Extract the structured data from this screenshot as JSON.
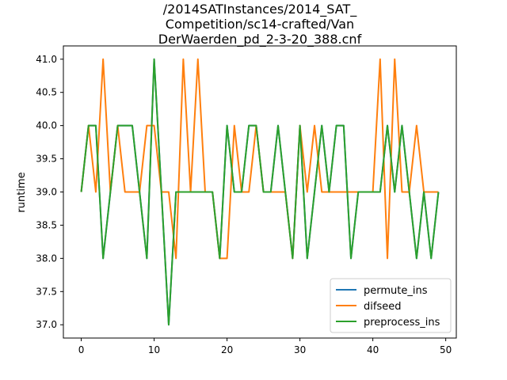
{
  "chart_data": {
    "type": "line",
    "title_lines": [
      "/2014SATInstances/2014_SAT_",
      "Competition/sc14-crafted/Van",
      "DerWaerden_pd_2-3-20_388.cnf"
    ],
    "xlabel": "",
    "ylabel": "runtime",
    "xlim": [
      -2.45,
      51.45
    ],
    "ylim": [
      36.8,
      41.2
    ],
    "xticks": [
      0,
      10,
      20,
      30,
      40,
      50
    ],
    "yticks": [
      37.0,
      37.5,
      38.0,
      38.5,
      39.0,
      39.5,
      40.0,
      40.5,
      41.0
    ],
    "ytick_labels": [
      "37.0",
      "37.5",
      "38.0",
      "38.5",
      "39.0",
      "39.5",
      "40.0",
      "40.5",
      "41.0"
    ],
    "legend_position": "lower right",
    "grid": false,
    "series": [
      {
        "name": "permute_ins",
        "color": "#1f77b4",
        "x": [
          0,
          1,
          2,
          3,
          4,
          5,
          6,
          7,
          8,
          9,
          10,
          11,
          12,
          13,
          14,
          15,
          16,
          17,
          18,
          19,
          20,
          21,
          22,
          23,
          24,
          25,
          26,
          27,
          28,
          29,
          30,
          31,
          32,
          33,
          34,
          35,
          36,
          37,
          38,
          39,
          40,
          41,
          42,
          43,
          44,
          45,
          46,
          47,
          48,
          49
        ],
        "values": [
          39,
          40,
          40,
          38,
          39,
          40,
          40,
          40,
          39,
          38,
          41,
          39,
          37,
          39,
          39,
          39,
          39,
          39,
          39,
          38,
          40,
          39,
          39,
          40,
          40,
          39,
          39,
          40,
          39,
          38,
          40,
          38,
          39,
          40,
          39,
          40,
          40,
          38,
          39,
          39,
          39,
          39,
          40,
          39,
          40,
          39,
          38,
          39,
          38,
          39
        ]
      },
      {
        "name": "difseed",
        "color": "#ff7f0e",
        "x": [
          0,
          1,
          2,
          3,
          4,
          5,
          6,
          7,
          8,
          9,
          10,
          11,
          12,
          13,
          14,
          15,
          16,
          17,
          18,
          19,
          20,
          21,
          22,
          23,
          24,
          25,
          26,
          27,
          28,
          29,
          30,
          31,
          32,
          33,
          34,
          35,
          36,
          37,
          38,
          39,
          40,
          41,
          42,
          43,
          44,
          45,
          46,
          47,
          48,
          49
        ],
        "values": [
          39,
          40,
          39,
          41,
          39,
          40,
          39,
          39,
          39,
          40,
          40,
          39,
          39,
          38,
          41,
          39,
          41,
          39,
          39,
          38,
          38,
          40,
          39,
          39,
          40,
          39,
          39,
          39,
          39,
          38,
          40,
          39,
          40,
          39,
          39,
          39,
          39,
          39,
          39,
          39,
          39,
          41,
          38,
          41,
          39,
          39,
          40,
          39,
          39,
          39
        ]
      },
      {
        "name": "preprocess_ins",
        "color": "#2ca02c",
        "x": [
          0,
          1,
          2,
          3,
          4,
          5,
          6,
          7,
          8,
          9,
          10,
          11,
          12,
          13,
          14,
          15,
          16,
          17,
          18,
          19,
          20,
          21,
          22,
          23,
          24,
          25,
          26,
          27,
          28,
          29,
          30,
          31,
          32,
          33,
          34,
          35,
          36,
          37,
          38,
          39,
          40,
          41,
          42,
          43,
          44,
          45,
          46,
          47,
          48,
          49
        ],
        "values": [
          39,
          40,
          40,
          38,
          39,
          40,
          40,
          40,
          39,
          38,
          41,
          39,
          37,
          39,
          39,
          39,
          39,
          39,
          39,
          38,
          40,
          39,
          39,
          40,
          40,
          39,
          39,
          40,
          39,
          38,
          40,
          38,
          39,
          40,
          39,
          40,
          40,
          38,
          39,
          39,
          39,
          39,
          40,
          39,
          40,
          39,
          38,
          39,
          38,
          39
        ]
      }
    ]
  }
}
